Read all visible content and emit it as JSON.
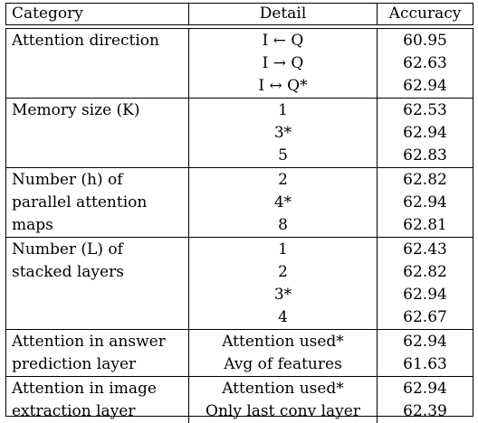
{
  "header": {
    "category": "Category",
    "detail": "Detail",
    "accuracy": "Accuracy"
  },
  "groups": [
    {
      "category_lines": [
        "Attention direction"
      ],
      "rows": [
        {
          "detail": "I ← Q",
          "accuracy": "60.95"
        },
        {
          "detail": "I → Q",
          "accuracy": "62.63"
        },
        {
          "detail": "I ↔ Q*",
          "accuracy": "62.94"
        }
      ]
    },
    {
      "category_lines": [
        "Memory size (K)"
      ],
      "rows": [
        {
          "detail": "1",
          "accuracy": "62.53"
        },
        {
          "detail": "3*",
          "accuracy": "62.94"
        },
        {
          "detail": "5",
          "accuracy": "62.83"
        }
      ]
    },
    {
      "category_lines": [
        "Number (h) of",
        "parallel attention",
        "maps"
      ],
      "rows": [
        {
          "detail": "2",
          "accuracy": "62.82"
        },
        {
          "detail": "4*",
          "accuracy": "62.94"
        },
        {
          "detail": "8",
          "accuracy": "62.81"
        }
      ]
    },
    {
      "category_lines": [
        "Number (L) of",
        "stacked layers"
      ],
      "rows": [
        {
          "detail": "1",
          "accuracy": "62.43"
        },
        {
          "detail": "2",
          "accuracy": "62.82"
        },
        {
          "detail": "3*",
          "accuracy": "62.94"
        },
        {
          "detail": "4",
          "accuracy": "62.67"
        }
      ]
    },
    {
      "category_lines": [
        "Attention in answer",
        "prediction layer"
      ],
      "rows": [
        {
          "detail": "Attention used*",
          "accuracy": "62.94"
        },
        {
          "detail": "Avg of features",
          "accuracy": "61.63"
        }
      ]
    },
    {
      "category_lines": [
        "Attention in image",
        "extraction layer"
      ],
      "rows": [
        {
          "detail": "Attention used*",
          "accuracy": "62.94"
        },
        {
          "detail": "Only last conv layer",
          "accuracy": "62.39"
        }
      ]
    }
  ]
}
